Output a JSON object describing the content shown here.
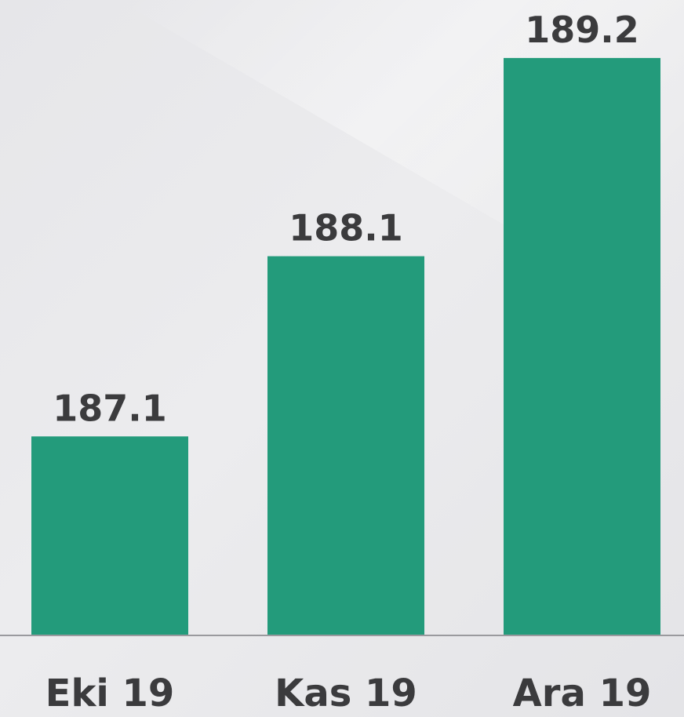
{
  "chart_data": {
    "type": "bar",
    "categories": [
      "Eki 19",
      "Kas 19",
      "Ara 19"
    ],
    "values": [
      187.1,
      188.1,
      189.2
    ],
    "color": "#239b7b",
    "ylim": [
      186,
      189.5
    ]
  }
}
